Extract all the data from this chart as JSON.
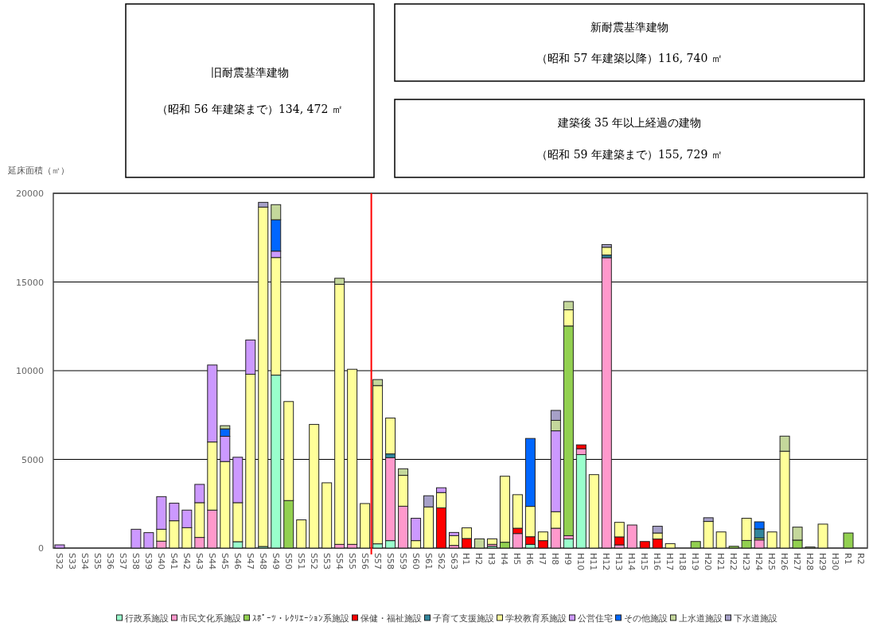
{
  "chart_data": {
    "type": "bar",
    "stacked": true,
    "ylabel": "延床面積（㎡）",
    "annotations": [
      "旧耐震基準建物",
      "（昭和 56 年建築まで）134, 472 ㎡",
      "新耐震基準建物",
      "（昭和 57 年建築以降）116, 740 ㎡",
      "建築後 35 年以上経過の建物",
      "（昭和 59 年建築まで）155, 729 ㎡"
    ],
    "categories": [
      "S32",
      "S33",
      "S34",
      "S35",
      "S36",
      "S37",
      "S38",
      "S39",
      "S40",
      "S41",
      "S42",
      "S43",
      "S44",
      "S45",
      "S46",
      "S47",
      "S48",
      "S49",
      "S50",
      "S51",
      "S52",
      "S53",
      "S54",
      "S55",
      "S56",
      "S57",
      "S58",
      "S59",
      "S60",
      "S61",
      "S62",
      "S63",
      "H1",
      "H2",
      "H3",
      "H4",
      "H5",
      "H6",
      "H7",
      "H8",
      "H9",
      "H10",
      "H11",
      "H12",
      "H13",
      "H14",
      "H15",
      "H16",
      "H17",
      "H18",
      "H19",
      "H20",
      "H21",
      "H22",
      "H23",
      "H24",
      "H25",
      "H26",
      "H27",
      "H28",
      "H29",
      "H30",
      "R1",
      "R2"
    ],
    "series": [
      {
        "name": "行政系施設",
        "color": "#99ffcc",
        "values": [
          0,
          0,
          0,
          0,
          0,
          0,
          0,
          0,
          0,
          0,
          0,
          0,
          0,
          0,
          360,
          0,
          90,
          9750,
          0,
          0,
          0,
          0,
          0,
          0,
          0,
          240,
          420,
          0,
          0,
          0,
          0,
          0,
          0,
          0,
          100,
          0,
          0,
          210,
          0,
          0,
          520,
          5270,
          0,
          0,
          0,
          0,
          0,
          0,
          0,
          0,
          0,
          0,
          0,
          0,
          0,
          0,
          0,
          0,
          0,
          0,
          0,
          0,
          0,
          0
        ]
      },
      {
        "name": "市民文化系施設",
        "color": "#ff99cc",
        "values": [
          0,
          0,
          0,
          0,
          0,
          0,
          0,
          0,
          390,
          0,
          0,
          600,
          2140,
          0,
          0,
          0,
          0,
          0,
          0,
          0,
          0,
          0,
          210,
          210,
          0,
          0,
          4670,
          2360,
          0,
          0,
          0,
          150,
          0,
          0,
          110,
          0,
          820,
          0,
          0,
          1120,
          180,
          330,
          0,
          16370,
          180,
          1300,
          0,
          0,
          0,
          0,
          0,
          0,
          0,
          0,
          0,
          460,
          0,
          0,
          0,
          0,
          0,
          0,
          0,
          0
        ]
      },
      {
        "name": "ｽﾎﾟｰﾂ・ﾚｸﾘｴｰｼｮﾝ系施設",
        "color": "#92d050",
        "values": [
          0,
          0,
          0,
          0,
          0,
          0,
          0,
          0,
          0,
          0,
          0,
          0,
          0,
          0,
          0,
          0,
          0,
          0,
          2680,
          0,
          0,
          0,
          0,
          0,
          0,
          0,
          0,
          0,
          0,
          0,
          0,
          0,
          0,
          0,
          0,
          330,
          0,
          0,
          0,
          0,
          11820,
          0,
          0,
          0,
          0,
          0,
          0,
          0,
          0,
          0,
          370,
          0,
          0,
          100,
          430,
          110,
          0,
          0,
          450,
          0,
          0,
          0,
          850,
          0
        ]
      },
      {
        "name": "保健・福祉施設",
        "color": "#ff0000",
        "values": [
          0,
          0,
          0,
          0,
          0,
          0,
          0,
          0,
          0,
          0,
          0,
          0,
          0,
          0,
          0,
          0,
          0,
          0,
          0,
          0,
          0,
          0,
          0,
          0,
          0,
          0,
          0,
          0,
          0,
          0,
          2270,
          0,
          540,
          0,
          0,
          0,
          300,
          430,
          420,
          0,
          0,
          220,
          0,
          0,
          450,
          0,
          370,
          510,
          0,
          0,
          0,
          0,
          0,
          0,
          0,
          0,
          0,
          0,
          0,
          0,
          0,
          0,
          0,
          0
        ]
      },
      {
        "name": "子育て支援施設",
        "color": "#31859c",
        "values": [
          0,
          0,
          0,
          0,
          0,
          0,
          0,
          0,
          0,
          0,
          0,
          0,
          0,
          0,
          0,
          0,
          0,
          0,
          0,
          0,
          0,
          0,
          0,
          0,
          0,
          0,
          220,
          0,
          0,
          0,
          0,
          0,
          0,
          0,
          0,
          0,
          0,
          0,
          0,
          0,
          0,
          0,
          0,
          150,
          0,
          0,
          0,
          0,
          0,
          0,
          0,
          0,
          0,
          0,
          0,
          510,
          0,
          0,
          0,
          0,
          0,
          0,
          0,
          0
        ]
      },
      {
        "name": "学校教育系施設",
        "color": "#ffff99",
        "values": [
          0,
          0,
          0,
          0,
          0,
          0,
          0,
          0,
          670,
          1540,
          1150,
          1960,
          3840,
          4880,
          2200,
          9800,
          19130,
          6630,
          5580,
          1590,
          6970,
          3680,
          14660,
          9870,
          2510,
          8920,
          2020,
          1740,
          420,
          2320,
          860,
          550,
          600,
          0,
          310,
          3720,
          1890,
          1710,
          490,
          930,
          910,
          0,
          4140,
          440,
          820,
          0,
          0,
          340,
          250,
          0,
          0,
          1500,
          910,
          0,
          1250,
          0,
          910,
          5460,
          0,
          0,
          1350,
          0,
          0,
          0
        ]
      },
      {
        "name": "公営住宅",
        "color": "#cc99ff",
        "values": [
          180,
          0,
          0,
          0,
          0,
          0,
          1060,
          870,
          1840,
          990,
          990,
          1030,
          4340,
          1420,
          2560,
          1930,
          0,
          360,
          0,
          0,
          0,
          0,
          0,
          0,
          0,
          0,
          0,
          0,
          1260,
          0,
          270,
          180,
          0,
          0,
          0,
          0,
          0,
          0,
          0,
          4560,
          0,
          0,
          0,
          0,
          0,
          0,
          0,
          0,
          0,
          0,
          0,
          0,
          0,
          0,
          0,
          0,
          0,
          0,
          0,
          0,
          0,
          0,
          0,
          0
        ]
      },
      {
        "name": "その他施設",
        "color": "#0066ff",
        "values": [
          0,
          0,
          0,
          0,
          0,
          0,
          0,
          0,
          0,
          0,
          0,
          0,
          0,
          420,
          0,
          0,
          0,
          1770,
          0,
          0,
          0,
          0,
          0,
          0,
          0,
          0,
          0,
          0,
          0,
          0,
          0,
          0,
          0,
          0,
          0,
          0,
          0,
          3830,
          0,
          0,
          0,
          0,
          0,
          0,
          0,
          0,
          0,
          0,
          0,
          0,
          0,
          0,
          0,
          0,
          0,
          400,
          0,
          0,
          0,
          0,
          0,
          0,
          0,
          0
        ]
      },
      {
        "name": "上水道施設",
        "color": "#c4d79b",
        "values": [
          0,
          0,
          0,
          0,
          0,
          0,
          0,
          0,
          0,
          0,
          0,
          0,
          0,
          180,
          0,
          0,
          0,
          850,
          0,
          0,
          0,
          0,
          340,
          0,
          0,
          340,
          0,
          370,
          0,
          0,
          0,
          0,
          0,
          520,
          0,
          0,
          0,
          0,
          0,
          590,
          470,
          0,
          0,
          0,
          0,
          0,
          0,
          0,
          0,
          0,
          0,
          0,
          0,
          0,
          0,
          0,
          0,
          850,
          730,
          60,
          0,
          0,
          0,
          0
        ]
      },
      {
        "name": "下水道施設",
        "color": "#a6a0c8",
        "values": [
          0,
          0,
          0,
          0,
          0,
          0,
          0,
          0,
          0,
          0,
          0,
          0,
          0,
          0,
          0,
          0,
          270,
          0,
          0,
          0,
          0,
          0,
          0,
          0,
          0,
          0,
          0,
          0,
          0,
          630,
          0,
          0,
          0,
          0,
          0,
          0,
          0,
          0,
          0,
          560,
          0,
          0,
          0,
          150,
          0,
          0,
          0,
          380,
          0,
          0,
          0,
          210,
          0,
          0,
          0,
          0,
          0,
          0,
          0,
          0,
          0,
          0,
          0,
          0
        ]
      }
    ],
    "ylim": [
      0,
      20000
    ],
    "yticks": [
      0,
      5000,
      10000,
      15000,
      20000
    ],
    "grid": "y",
    "legend": "bottom",
    "ref_lines": [
      {
        "axis": "x",
        "value": "S57",
        "color": "#ff0000"
      }
    ]
  }
}
